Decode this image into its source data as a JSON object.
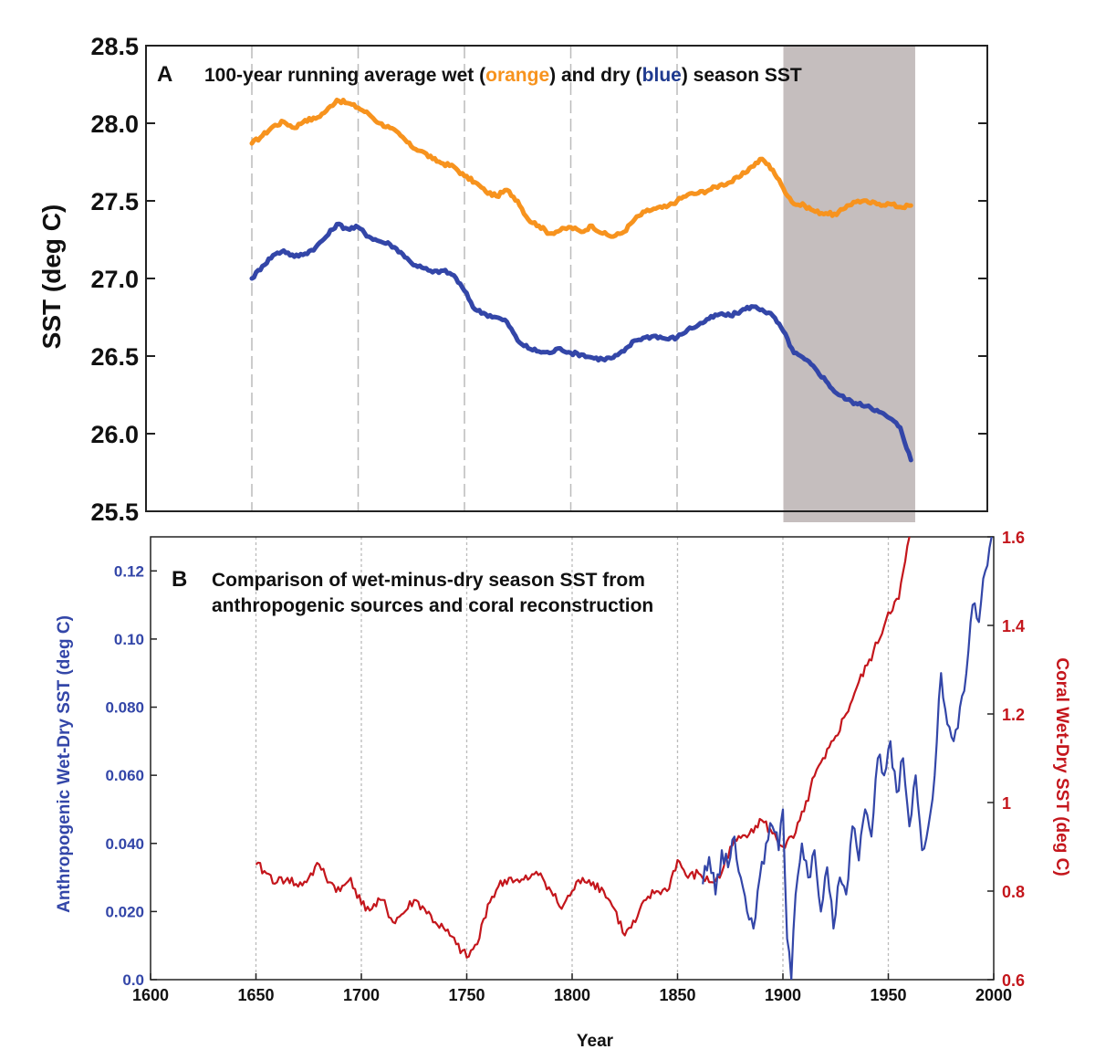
{
  "colors": {
    "orange": "#F7931E",
    "blue": "#3346A8",
    "darkblue": "#1F3A8F",
    "red": "#C4161C",
    "shade": "#C5BEBE",
    "grid": "#BBBBBB"
  },
  "chart_data": [
    {
      "type": "line",
      "panel": "A",
      "title_parts": [
        "100-year running average wet (",
        "orange",
        ") and dry (",
        "blue",
        ") season SST"
      ],
      "ylabel": "SST (deg C)",
      "xlabel": "",
      "x_range": [
        1600,
        2000
      ],
      "ylim": [
        25.5,
        28.5
      ],
      "yticks": [
        "25.5",
        "26.0",
        "26.5",
        "27.0",
        "27.5",
        "28.0",
        "28.5"
      ],
      "grid": "vertical dashed every 50 years",
      "shaded_region": [
        1900,
        1962
      ],
      "series": [
        {
          "color": "orange",
          "x": [
            1650,
            1655,
            1660,
            1665,
            1670,
            1675,
            1680,
            1685,
            1690,
            1695,
            1700,
            1705,
            1710,
            1715,
            1720,
            1725,
            1730,
            1735,
            1740,
            1745,
            1750,
            1755,
            1760,
            1765,
            1770,
            1775,
            1780,
            1785,
            1790,
            1795,
            1800,
            1805,
            1810,
            1815,
            1820,
            1825,
            1830,
            1835,
            1840,
            1845,
            1850,
            1855,
            1860,
            1865,
            1870,
            1875,
            1880,
            1885,
            1890,
            1895,
            1900,
            1905,
            1910,
            1915,
            1920,
            1925,
            1930,
            1935,
            1940,
            1945,
            1950,
            1955,
            1960
          ],
          "y": [
            27.87,
            27.92,
            27.98,
            28.01,
            27.97,
            28.02,
            28.03,
            28.08,
            28.15,
            28.13,
            28.1,
            28.06,
            28.0,
            27.97,
            27.92,
            27.85,
            27.82,
            27.77,
            27.74,
            27.72,
            27.66,
            27.62,
            27.56,
            27.53,
            27.57,
            27.5,
            27.38,
            27.34,
            27.29,
            27.31,
            27.33,
            27.3,
            27.34,
            27.29,
            27.27,
            27.3,
            27.38,
            27.43,
            27.45,
            27.46,
            27.5,
            27.54,
            27.55,
            27.57,
            27.6,
            27.62,
            27.66,
            27.72,
            27.77,
            27.7,
            27.58,
            27.48,
            27.47,
            27.43,
            27.42,
            27.41,
            27.47,
            27.5,
            27.49,
            27.48,
            27.48,
            27.46,
            27.47
          ]
        },
        {
          "color": "blue",
          "x": [
            1650,
            1655,
            1660,
            1665,
            1670,
            1675,
            1680,
            1685,
            1690,
            1695,
            1700,
            1705,
            1710,
            1715,
            1720,
            1725,
            1730,
            1735,
            1740,
            1745,
            1750,
            1755,
            1760,
            1765,
            1770,
            1775,
            1780,
            1785,
            1790,
            1795,
            1800,
            1805,
            1810,
            1815,
            1820,
            1825,
            1830,
            1835,
            1840,
            1845,
            1850,
            1855,
            1860,
            1865,
            1870,
            1875,
            1880,
            1885,
            1890,
            1895,
            1900,
            1905,
            1910,
            1915,
            1920,
            1925,
            1930,
            1935,
            1940,
            1945,
            1950,
            1955,
            1960
          ],
          "y": [
            27.0,
            27.08,
            27.15,
            27.18,
            27.14,
            27.16,
            27.2,
            27.27,
            27.35,
            27.32,
            27.33,
            27.27,
            27.24,
            27.22,
            27.17,
            27.1,
            27.07,
            27.04,
            27.05,
            27.02,
            26.92,
            26.8,
            26.77,
            26.75,
            26.72,
            26.6,
            26.55,
            26.53,
            26.52,
            26.55,
            26.52,
            26.51,
            26.49,
            26.48,
            26.49,
            26.53,
            26.6,
            26.62,
            26.63,
            26.61,
            26.62,
            26.67,
            26.7,
            26.74,
            26.77,
            26.76,
            26.79,
            26.82,
            26.8,
            26.76,
            26.66,
            26.52,
            26.48,
            26.42,
            26.34,
            26.26,
            26.22,
            26.19,
            26.18,
            26.14,
            26.1,
            26.04,
            25.83
          ]
        }
      ]
    },
    {
      "type": "line",
      "panel": "B",
      "title": [
        "Comparison of wet-minus-dry season SST from",
        "anthropogenic sources and coral reconstruction"
      ],
      "xlabel": "Year",
      "xlim": [
        1600,
        2000
      ],
      "xticks": [
        "1600",
        "1650",
        "1700",
        "1750",
        "1800",
        "1850",
        "1900",
        "1950",
        "2000"
      ],
      "ylabel_left": "Anthropogenic Wet-Dry SST (deg C)",
      "ylim_left": [
        0.0,
        0.13
      ],
      "yticks_left": [
        "0.0",
        "0.020",
        "0.040",
        "0.060",
        "0.080",
        "0.10",
        "0.12"
      ],
      "ylabel_right": "Coral Wet-Dry SST (deg C)",
      "ylim_right": [
        0.6,
        1.6
      ],
      "yticks_right": [
        "0.6",
        "0.8",
        "1",
        "1.2",
        "1.4",
        "1.6"
      ],
      "grid": "vertical dashed every 50 years",
      "series": [
        {
          "color": "red",
          "axis": "right",
          "x": [
            1650,
            1655,
            1660,
            1665,
            1670,
            1675,
            1680,
            1685,
            1690,
            1695,
            1700,
            1705,
            1710,
            1715,
            1720,
            1725,
            1730,
            1735,
            1740,
            1745,
            1750,
            1755,
            1760,
            1765,
            1770,
            1775,
            1780,
            1785,
            1790,
            1795,
            1800,
            1805,
            1810,
            1815,
            1820,
            1825,
            1830,
            1835,
            1840,
            1845,
            1850,
            1855,
            1860,
            1865,
            1870,
            1875,
            1880,
            1885,
            1890,
            1895,
            1900,
            1905,
            1910,
            1915,
            1920,
            1925,
            1930,
            1935,
            1940,
            1945,
            1950,
            1955,
            1960
          ],
          "y": [
            0.86,
            0.84,
            0.82,
            0.83,
            0.81,
            0.83,
            0.86,
            0.82,
            0.8,
            0.83,
            0.77,
            0.76,
            0.78,
            0.73,
            0.75,
            0.78,
            0.76,
            0.73,
            0.71,
            0.68,
            0.65,
            0.68,
            0.77,
            0.81,
            0.83,
            0.82,
            0.83,
            0.84,
            0.8,
            0.76,
            0.8,
            0.83,
            0.82,
            0.8,
            0.76,
            0.7,
            0.73,
            0.78,
            0.8,
            0.8,
            0.87,
            0.83,
            0.84,
            0.82,
            0.83,
            0.9,
            0.92,
            0.94,
            0.96,
            0.93,
            0.9,
            0.92,
            0.98,
            1.06,
            1.1,
            1.15,
            1.2,
            1.26,
            1.31,
            1.36,
            1.43,
            1.46,
            1.6
          ]
        },
        {
          "color": "blue",
          "axis": "left",
          "x": [
            1862,
            1865,
            1868,
            1871,
            1874,
            1877,
            1880,
            1883,
            1886,
            1889,
            1892,
            1895,
            1898,
            1900,
            1902,
            1904,
            1906,
            1909,
            1912,
            1915,
            1918,
            1921,
            1924,
            1927,
            1930,
            1933,
            1936,
            1939,
            1942,
            1945,
            1948,
            1951,
            1954,
            1957,
            1960,
            1963,
            1966,
            1969,
            1972,
            1975,
            1978,
            1981,
            1984,
            1987,
            1990,
            1993,
            1996,
            1999
          ],
          "y": [
            0.028,
            0.036,
            0.025,
            0.038,
            0.033,
            0.042,
            0.03,
            0.02,
            0.015,
            0.03,
            0.04,
            0.045,
            0.038,
            0.05,
            0.012,
            0.0,
            0.025,
            0.04,
            0.03,
            0.038,
            0.02,
            0.033,
            0.015,
            0.03,
            0.025,
            0.045,
            0.035,
            0.05,
            0.042,
            0.065,
            0.06,
            0.07,
            0.055,
            0.065,
            0.045,
            0.06,
            0.038,
            0.045,
            0.06,
            0.09,
            0.075,
            0.07,
            0.08,
            0.09,
            0.11,
            0.105,
            0.12,
            0.13
          ]
        }
      ]
    }
  ]
}
